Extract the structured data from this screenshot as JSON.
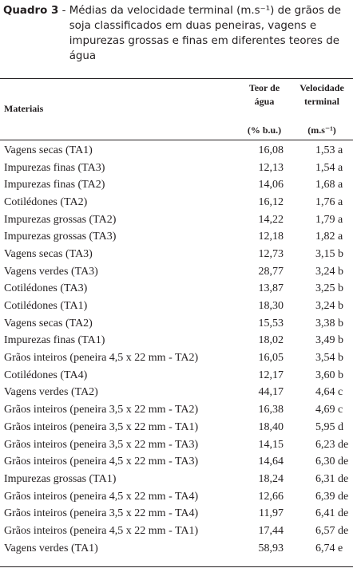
{
  "caption": {
    "label": "Quadro 3",
    "text": "Médias da velocidade terminal (m.s⁻¹) de grãos de soja classificados em duas peneiras, vagens e impurezas grossas e finas em diferentes teores de água"
  },
  "table": {
    "headers": {
      "materiais": "Materiais",
      "teor_line1": "Teor de",
      "teor_line2": "água",
      "teor_unit": "(% b.u.)",
      "vel_line1": "Velocidade",
      "vel_line2": "terminal",
      "vel_unit": "(m.s⁻¹)"
    },
    "rows": [
      {
        "material": "Vagens secas (TA1)",
        "teor": "16,08",
        "velocidade": "1,53 a"
      },
      {
        "material": "Impurezas finas (TA3)",
        "teor": "12,13",
        "velocidade": "1,54 a"
      },
      {
        "material": "Impurezas finas (TA2)",
        "teor": "14,06",
        "velocidade": "1,68 a"
      },
      {
        "material": "Cotilédones (TA2)",
        "teor": "16,12",
        "velocidade": "1,76 a"
      },
      {
        "material": "Impurezas grossas (TA2)",
        "teor": "14,22",
        "velocidade": "1,79 a"
      },
      {
        "material": "Impurezas grossas (TA3)",
        "teor": "12,18",
        "velocidade": "1,82 a"
      },
      {
        "material": "Vagens secas (TA3)",
        "teor": "12,73",
        "velocidade": "3,15 b"
      },
      {
        "material": "Vagens verdes (TA3)",
        "teor": "28,77",
        "velocidade": "3,24 b"
      },
      {
        "material": "Cotilédones (TA3)",
        "teor": "13,87",
        "velocidade": "3,25 b"
      },
      {
        "material": "Cotilédones (TA1)",
        "teor": "18,30",
        "velocidade": "3,24 b"
      },
      {
        "material": "Vagens secas (TA2)",
        "teor": "15,53",
        "velocidade": "3,38 b"
      },
      {
        "material": "Impurezas finas (TA1)",
        "teor": "18,02",
        "velocidade": "3,49 b"
      },
      {
        "material": "Grãos inteiros (peneira 4,5 x 22 mm - TA2)",
        "teor": "16,05",
        "velocidade": "3,54 b"
      },
      {
        "material": "Cotilédones (TA4)",
        "teor": "12,17",
        "velocidade": "3,60 b"
      },
      {
        "material": "Vagens verdes (TA2)",
        "teor": "44,17",
        "velocidade": "4,64 c"
      },
      {
        "material": "Grãos inteiros (peneira 3,5 x 22 mm - TA2)",
        "teor": "16,38",
        "velocidade": "4,69 c"
      },
      {
        "material": "Grãos inteiros (peneira 3,5 x 22 mm - TA1)",
        "teor": "18,40",
        "velocidade": "5,95 d"
      },
      {
        "material": "Grãos inteiros (peneira 3,5 x 22 mm - TA3)",
        "teor": "14,15",
        "velocidade": "6,23 de"
      },
      {
        "material": "Grãos inteiros (peneira 4,5 x 22 mm - TA3)",
        "teor": "14,64",
        "velocidade": "6,30 de"
      },
      {
        "material": "Impurezas grossas (TA1)",
        "teor": "18,24",
        "velocidade": "6,31 de"
      },
      {
        "material": "Grãos inteiros (peneira  4,5 x 22 mm - TA4)",
        "teor": "12,66",
        "velocidade": "6,39 de"
      },
      {
        "material": "Grãos inteiros (peneira 3,5 x 22 mm - TA4)",
        "teor": "11,97",
        "velocidade": "6,41 de"
      },
      {
        "material": "Grãos inteiros (peneira 4,5 x 22 mm - TA1)",
        "teor": "17,44",
        "velocidade": "6,57 de"
      },
      {
        "material": "Vagens verdes (TA1)",
        "teor": "58,93",
        "velocidade": "6,74 e"
      }
    ]
  }
}
